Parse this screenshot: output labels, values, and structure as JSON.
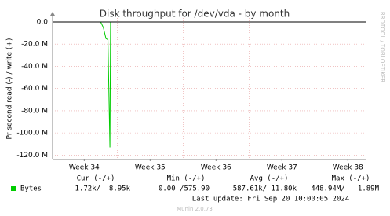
{
  "chart_data": {
    "type": "line",
    "title": "Disk throughput for /dev/vda - by month",
    "y_label": "Pr second read (-) / write (+)",
    "side_label": "RRDTOOL / TOBI OETIKER",
    "xlim": [
      33.52,
      38.27
    ],
    "xticks": [
      {
        "value": 34,
        "label": "Week 34"
      },
      {
        "value": 35,
        "label": "Week 35"
      },
      {
        "value": 36,
        "label": "Week 36"
      },
      {
        "value": 37,
        "label": "Week 37"
      },
      {
        "value": 38,
        "label": "Week 38"
      }
    ],
    "xgrid": [
      34.5,
      35.5,
      36.5,
      37.5
    ],
    "ylim": [
      -124000000,
      0
    ],
    "yticks": [
      {
        "value": 0,
        "label": "0.0"
      },
      {
        "value": -20000000,
        "label": "-20.0 M"
      },
      {
        "value": -40000000,
        "label": "-40.0 M"
      },
      {
        "value": -60000000,
        "label": "-60.0 M"
      },
      {
        "value": -80000000,
        "label": "-80.0 M"
      },
      {
        "value": -100000000,
        "label": "-100.0 M"
      },
      {
        "value": -120000000,
        "label": "-120.0 M"
      }
    ],
    "grid": true,
    "x": [
      33.52,
      34.25,
      34.29,
      34.33,
      34.36,
      34.39,
      34.4,
      38.27
    ],
    "series": [
      {
        "name": "Bytes",
        "color": "#00cc00",
        "values": [
          0,
          0,
          -5000000,
          -15000000,
          -16000000,
          -113000000,
          0,
          0
        ]
      }
    ],
    "legend": {
      "headers": [
        "Cur (-/+)",
        "Min (-/+)",
        "Avg (-/+)",
        "Max (-/+)"
      ],
      "rows": [
        [
          "1.72k/  8.95k",
          "0.00 /575.90",
          "587.61k/ 11.80k",
          "448.94M/   1.89M"
        ]
      ]
    },
    "last_update": "Last update: Fri Sep 20 10:00:05 2024",
    "footer": "Munin 2.0.73"
  }
}
